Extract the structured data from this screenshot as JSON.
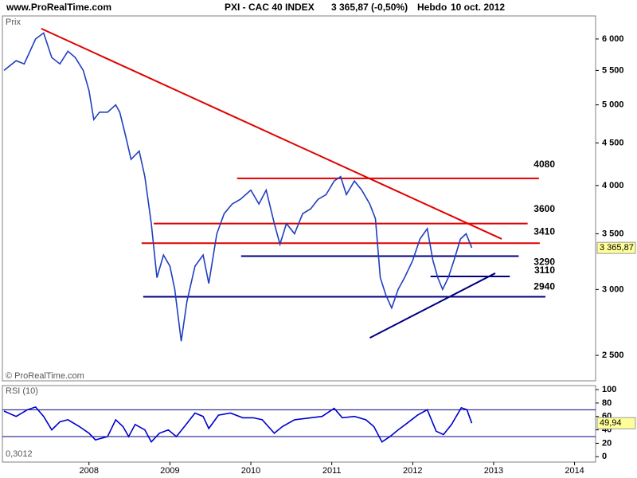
{
  "header": {
    "site": "www.ProRealTime.com",
    "instrument": "PXI - CAC 40 INDEX",
    "quote": "3 365,87 (-0,50%)",
    "period": "Hebdo",
    "date": "10 oct. 2012"
  },
  "chart_data": [
    {
      "type": "line",
      "y_label": "Prix",
      "copyright": "© ProRealTime.com",
      "log_scale": true,
      "color": "#1f3fbf",
      "xlim": [
        2006.93,
        2014.26
      ],
      "ylim": [
        2330,
        6395
      ],
      "yticks": [
        {
          "value": 2500,
          "label": "2 500"
        },
        {
          "value": 3000,
          "label": "3 000"
        },
        {
          "value": 3500,
          "label": "3 500"
        },
        {
          "value": 4000,
          "label": "4 000"
        },
        {
          "value": 4500,
          "label": "4 500"
        },
        {
          "value": 5000,
          "label": "5 000"
        },
        {
          "value": 5500,
          "label": "5 500"
        },
        {
          "value": 6000,
          "label": "6 000"
        }
      ],
      "x": [
        2006.95,
        2007.1,
        2007.2,
        2007.34,
        2007.44,
        2007.54,
        2007.64,
        2007.74,
        2007.83,
        2007.93,
        2008.0,
        2008.06,
        2008.13,
        2008.23,
        2008.33,
        2008.38,
        2008.45,
        2008.52,
        2008.62,
        2008.69,
        2008.77,
        2008.84,
        2008.92,
        2009.0,
        2009.06,
        2009.14,
        2009.21,
        2009.31,
        2009.41,
        2009.48,
        2009.58,
        2009.67,
        2009.77,
        2009.87,
        2010.0,
        2010.1,
        2010.19,
        2010.29,
        2010.36,
        2010.44,
        2010.54,
        2010.64,
        2010.74,
        2010.83,
        2010.93,
        2011.03,
        2011.11,
        2011.18,
        2011.28,
        2011.37,
        2011.47,
        2011.54,
        2011.6,
        2011.67,
        2011.74,
        2011.82,
        2011.9,
        2012.0,
        2012.09,
        2012.18,
        2012.25,
        2012.31,
        2012.37,
        2012.44,
        2012.51,
        2012.59,
        2012.66,
        2012.73
      ],
      "values": [
        5500,
        5650,
        5600,
        6000,
        6100,
        5700,
        5600,
        5800,
        5700,
        5500,
        5200,
        4800,
        4900,
        4900,
        5000,
        4900,
        4600,
        4300,
        4400,
        4100,
        3600,
        3100,
        3300,
        3200,
        3000,
        2600,
        2900,
        3200,
        3300,
        3050,
        3500,
        3700,
        3800,
        3850,
        3950,
        3800,
        3950,
        3600,
        3400,
        3600,
        3500,
        3700,
        3750,
        3850,
        3900,
        4050,
        4100,
        3900,
        4050,
        3950,
        3800,
        3650,
        3100,
        2950,
        2850,
        3000,
        3100,
        3250,
        3450,
        3550,
        3250,
        3100,
        3000,
        3100,
        3250,
        3450,
        3500,
        3365.87
      ],
      "last": {
        "value": 3365.87,
        "label": "3 365,87"
      },
      "levels": [
        {
          "value": 4080,
          "x": [
            2009.83,
            2013.56
          ],
          "color": "#e00000"
        },
        {
          "value": 3600,
          "x": [
            2008.8,
            2013.42
          ],
          "color": "#e00000"
        },
        {
          "value": 3410,
          "x": [
            2008.65,
            2013.57
          ],
          "color": "#e00000"
        },
        {
          "value": 3290,
          "x": [
            2009.88,
            2013.31
          ],
          "color": "#000080"
        },
        {
          "value": 3110,
          "x": [
            2012.22,
            2013.2
          ],
          "color": "#000080"
        },
        {
          "value": 2940,
          "x": [
            2008.67,
            2013.64
          ],
          "color": "#000080"
        }
      ],
      "trendlines": [
        {
          "x": [
            2007.41,
            2013.1
          ],
          "y": [
            6175,
            3450
          ],
          "color": "#e00000"
        },
        {
          "x": [
            2011.47,
            2013.02
          ],
          "y": [
            2624,
            3138
          ],
          "color": "#000080"
        }
      ]
    },
    {
      "type": "line",
      "title": "RSI (10)",
      "note": "0,3012",
      "color": "#0000cc",
      "xlim": [
        2006.93,
        2014.26
      ],
      "ylim": [
        -8,
        106
      ],
      "xticks": [
        2008,
        2009,
        2010,
        2011,
        2012,
        2013,
        2014
      ],
      "yticks": [
        0,
        20,
        40,
        60,
        80,
        100
      ],
      "levels": [
        70,
        30
      ],
      "x": [
        2006.95,
        2007.1,
        2007.24,
        2007.34,
        2007.44,
        2007.54,
        2007.64,
        2007.74,
        2007.88,
        2008.0,
        2008.08,
        2008.23,
        2008.33,
        2008.42,
        2008.49,
        2008.57,
        2008.69,
        2008.77,
        2008.87,
        2008.98,
        2009.08,
        2009.18,
        2009.31,
        2009.41,
        2009.48,
        2009.6,
        2009.75,
        2009.9,
        2010.03,
        2010.14,
        2010.29,
        2010.39,
        2010.54,
        2010.74,
        2010.88,
        2011.03,
        2011.13,
        2011.28,
        2011.42,
        2011.52,
        2011.62,
        2011.72,
        2011.82,
        2011.91,
        2012.06,
        2012.18,
        2012.29,
        2012.38,
        2012.48,
        2012.6,
        2012.67,
        2012.73
      ],
      "values": [
        68,
        60,
        70,
        74,
        60,
        40,
        52,
        55,
        45,
        35,
        25,
        30,
        55,
        45,
        30,
        48,
        40,
        22,
        35,
        40,
        30,
        45,
        65,
        60,
        42,
        62,
        65,
        58,
        58,
        55,
        35,
        45,
        55,
        58,
        60,
        72,
        58,
        60,
        55,
        45,
        22,
        30,
        40,
        48,
        62,
        70,
        38,
        33,
        48,
        73,
        70,
        49.94
      ],
      "last": {
        "value": 49.94,
        "label": "49,94"
      }
    }
  ]
}
